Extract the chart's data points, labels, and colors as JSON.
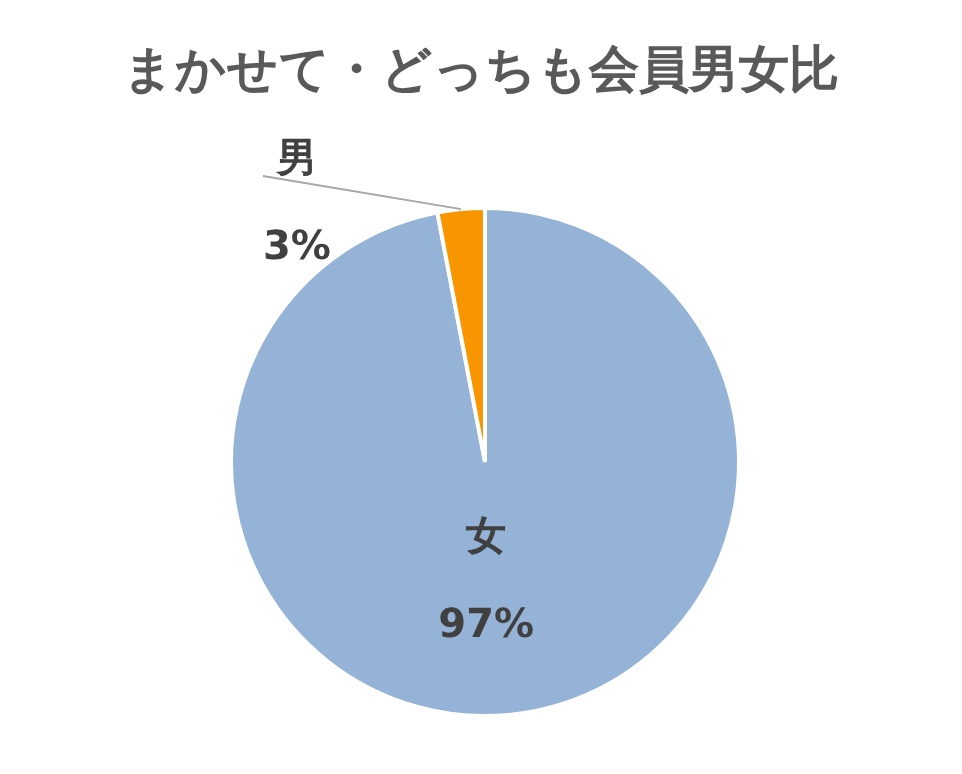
{
  "chart_data": {
    "type": "pie",
    "title": "まかせて・どっちも会員男女比",
    "categories": [
      "女",
      "男"
    ],
    "values": [
      97,
      3
    ],
    "colors": [
      "#95b3d7",
      "#f79600"
    ],
    "value_labels": [
      "97%",
      "3%"
    ],
    "legend": false
  }
}
